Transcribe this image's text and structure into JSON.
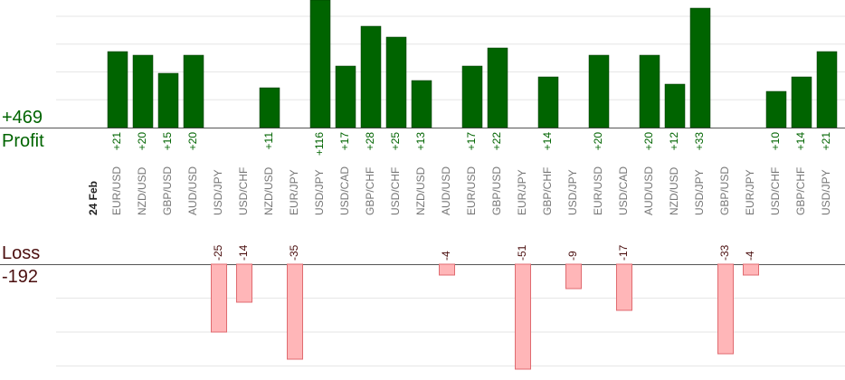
{
  "summary": {
    "profit_total": "+469",
    "profit_label": "Profit",
    "loss_label": "Loss",
    "loss_total": "-192"
  },
  "colors": {
    "profit_bar": "#006400",
    "profit_bar_edge": "#003300",
    "profit_text": "#006400",
    "loss_bar": "#ffb6b8",
    "loss_bar_edge": "#e06b70",
    "loss_text": "#4a0e0e",
    "axis": "#555555",
    "grid": "#e6e6e6",
    "category_text": "#777777",
    "date_text": "#222222"
  },
  "chart_data": {
    "type": "bar",
    "date_label": "24 Feb",
    "categories": [
      "EUR/USD",
      "NZD/USD",
      "GBP/USD",
      "AUD/USD",
      "USD/JPY",
      "USD/CHF",
      "NZD/USD",
      "EUR/JPY",
      "USD/JPY",
      "USD/CAD",
      "GBP/CHF",
      "USD/CHF",
      "NZD/USD",
      "AUD/USD",
      "EUR/USD",
      "GBP/USD",
      "EUR/JPY",
      "GBP/CHF",
      "USD/JPY",
      "EUR/USD",
      "USD/CAD",
      "AUD/USD",
      "NZD/USD",
      "USD/JPY",
      "GBP/USD",
      "EUR/JPY",
      "USD/CHF",
      "GBP/CHF",
      "USD/JPY"
    ],
    "series": [
      {
        "name": "Profit",
        "values": [
          21,
          20,
          15,
          20,
          null,
          null,
          11,
          null,
          116,
          17,
          28,
          25,
          13,
          null,
          17,
          22,
          null,
          14,
          null,
          20,
          null,
          20,
          12,
          33,
          null,
          null,
          10,
          14,
          21
        ],
        "labels": [
          "+21",
          "+20",
          "+15",
          "+20",
          "",
          "",
          "+11",
          "",
          "+116",
          "+17",
          "+28",
          "+25",
          "+13",
          "",
          "+17",
          "+22",
          "",
          "+14",
          "",
          "+20",
          "",
          "+20",
          "+12",
          "+33",
          "",
          "",
          "+10",
          "+14",
          "+21"
        ]
      },
      {
        "name": "Loss",
        "values": [
          null,
          null,
          null,
          null,
          -25,
          -14,
          null,
          -35,
          null,
          null,
          null,
          null,
          null,
          -4,
          null,
          null,
          -51,
          null,
          -9,
          null,
          -17,
          null,
          null,
          null,
          -33,
          -4,
          null,
          null,
          null
        ],
        "labels": [
          "",
          "",
          "",
          "",
          "-25",
          "-14",
          "",
          "-35",
          "",
          "",
          "",
          "",
          "",
          "-4",
          "",
          "",
          "-51",
          "",
          "-9",
          "",
          "-17",
          "",
          "",
          "",
          "-33",
          "-4",
          "",
          "",
          ""
        ]
      }
    ],
    "profit_ylim": [
      0,
      35
    ],
    "loss_ylim": [
      -30,
      0
    ],
    "grid": true
  }
}
